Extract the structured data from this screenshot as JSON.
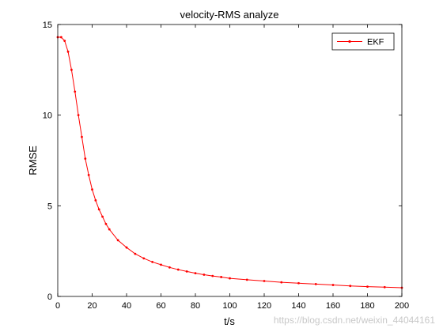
{
  "chart_data": {
    "type": "line",
    "title": "velocity-RMS analyze",
    "xlabel": "t/s",
    "ylabel": "RMSE",
    "xlim": [
      0,
      200
    ],
    "ylim": [
      0,
      15
    ],
    "xticks": [
      0,
      20,
      40,
      60,
      80,
      100,
      120,
      140,
      160,
      180,
      200
    ],
    "yticks": [
      0,
      5,
      10,
      15
    ],
    "grid": false,
    "legend_position": "top-right",
    "marker": "dot",
    "series": [
      {
        "name": "EKF",
        "color": "#ff0000",
        "x": [
          0,
          2,
          4,
          6,
          8,
          10,
          12,
          14,
          16,
          18,
          20,
          22,
          24,
          26,
          28,
          30,
          35,
          40,
          45,
          50,
          55,
          60,
          65,
          70,
          75,
          80,
          85,
          90,
          95,
          100,
          110,
          120,
          130,
          140,
          150,
          160,
          170,
          180,
          190,
          200
        ],
        "y": [
          14.3,
          14.3,
          14.1,
          13.5,
          12.5,
          11.3,
          10.0,
          8.8,
          7.6,
          6.7,
          5.9,
          5.3,
          4.8,
          4.4,
          4.0,
          3.7,
          3.1,
          2.7,
          2.35,
          2.1,
          1.9,
          1.75,
          1.6,
          1.48,
          1.38,
          1.28,
          1.2,
          1.13,
          1.07,
          1.0,
          0.92,
          0.85,
          0.78,
          0.73,
          0.68,
          0.63,
          0.58,
          0.54,
          0.51,
          0.48
        ]
      }
    ]
  },
  "watermark": "https://blog.csdn.net/weixin_44044161"
}
